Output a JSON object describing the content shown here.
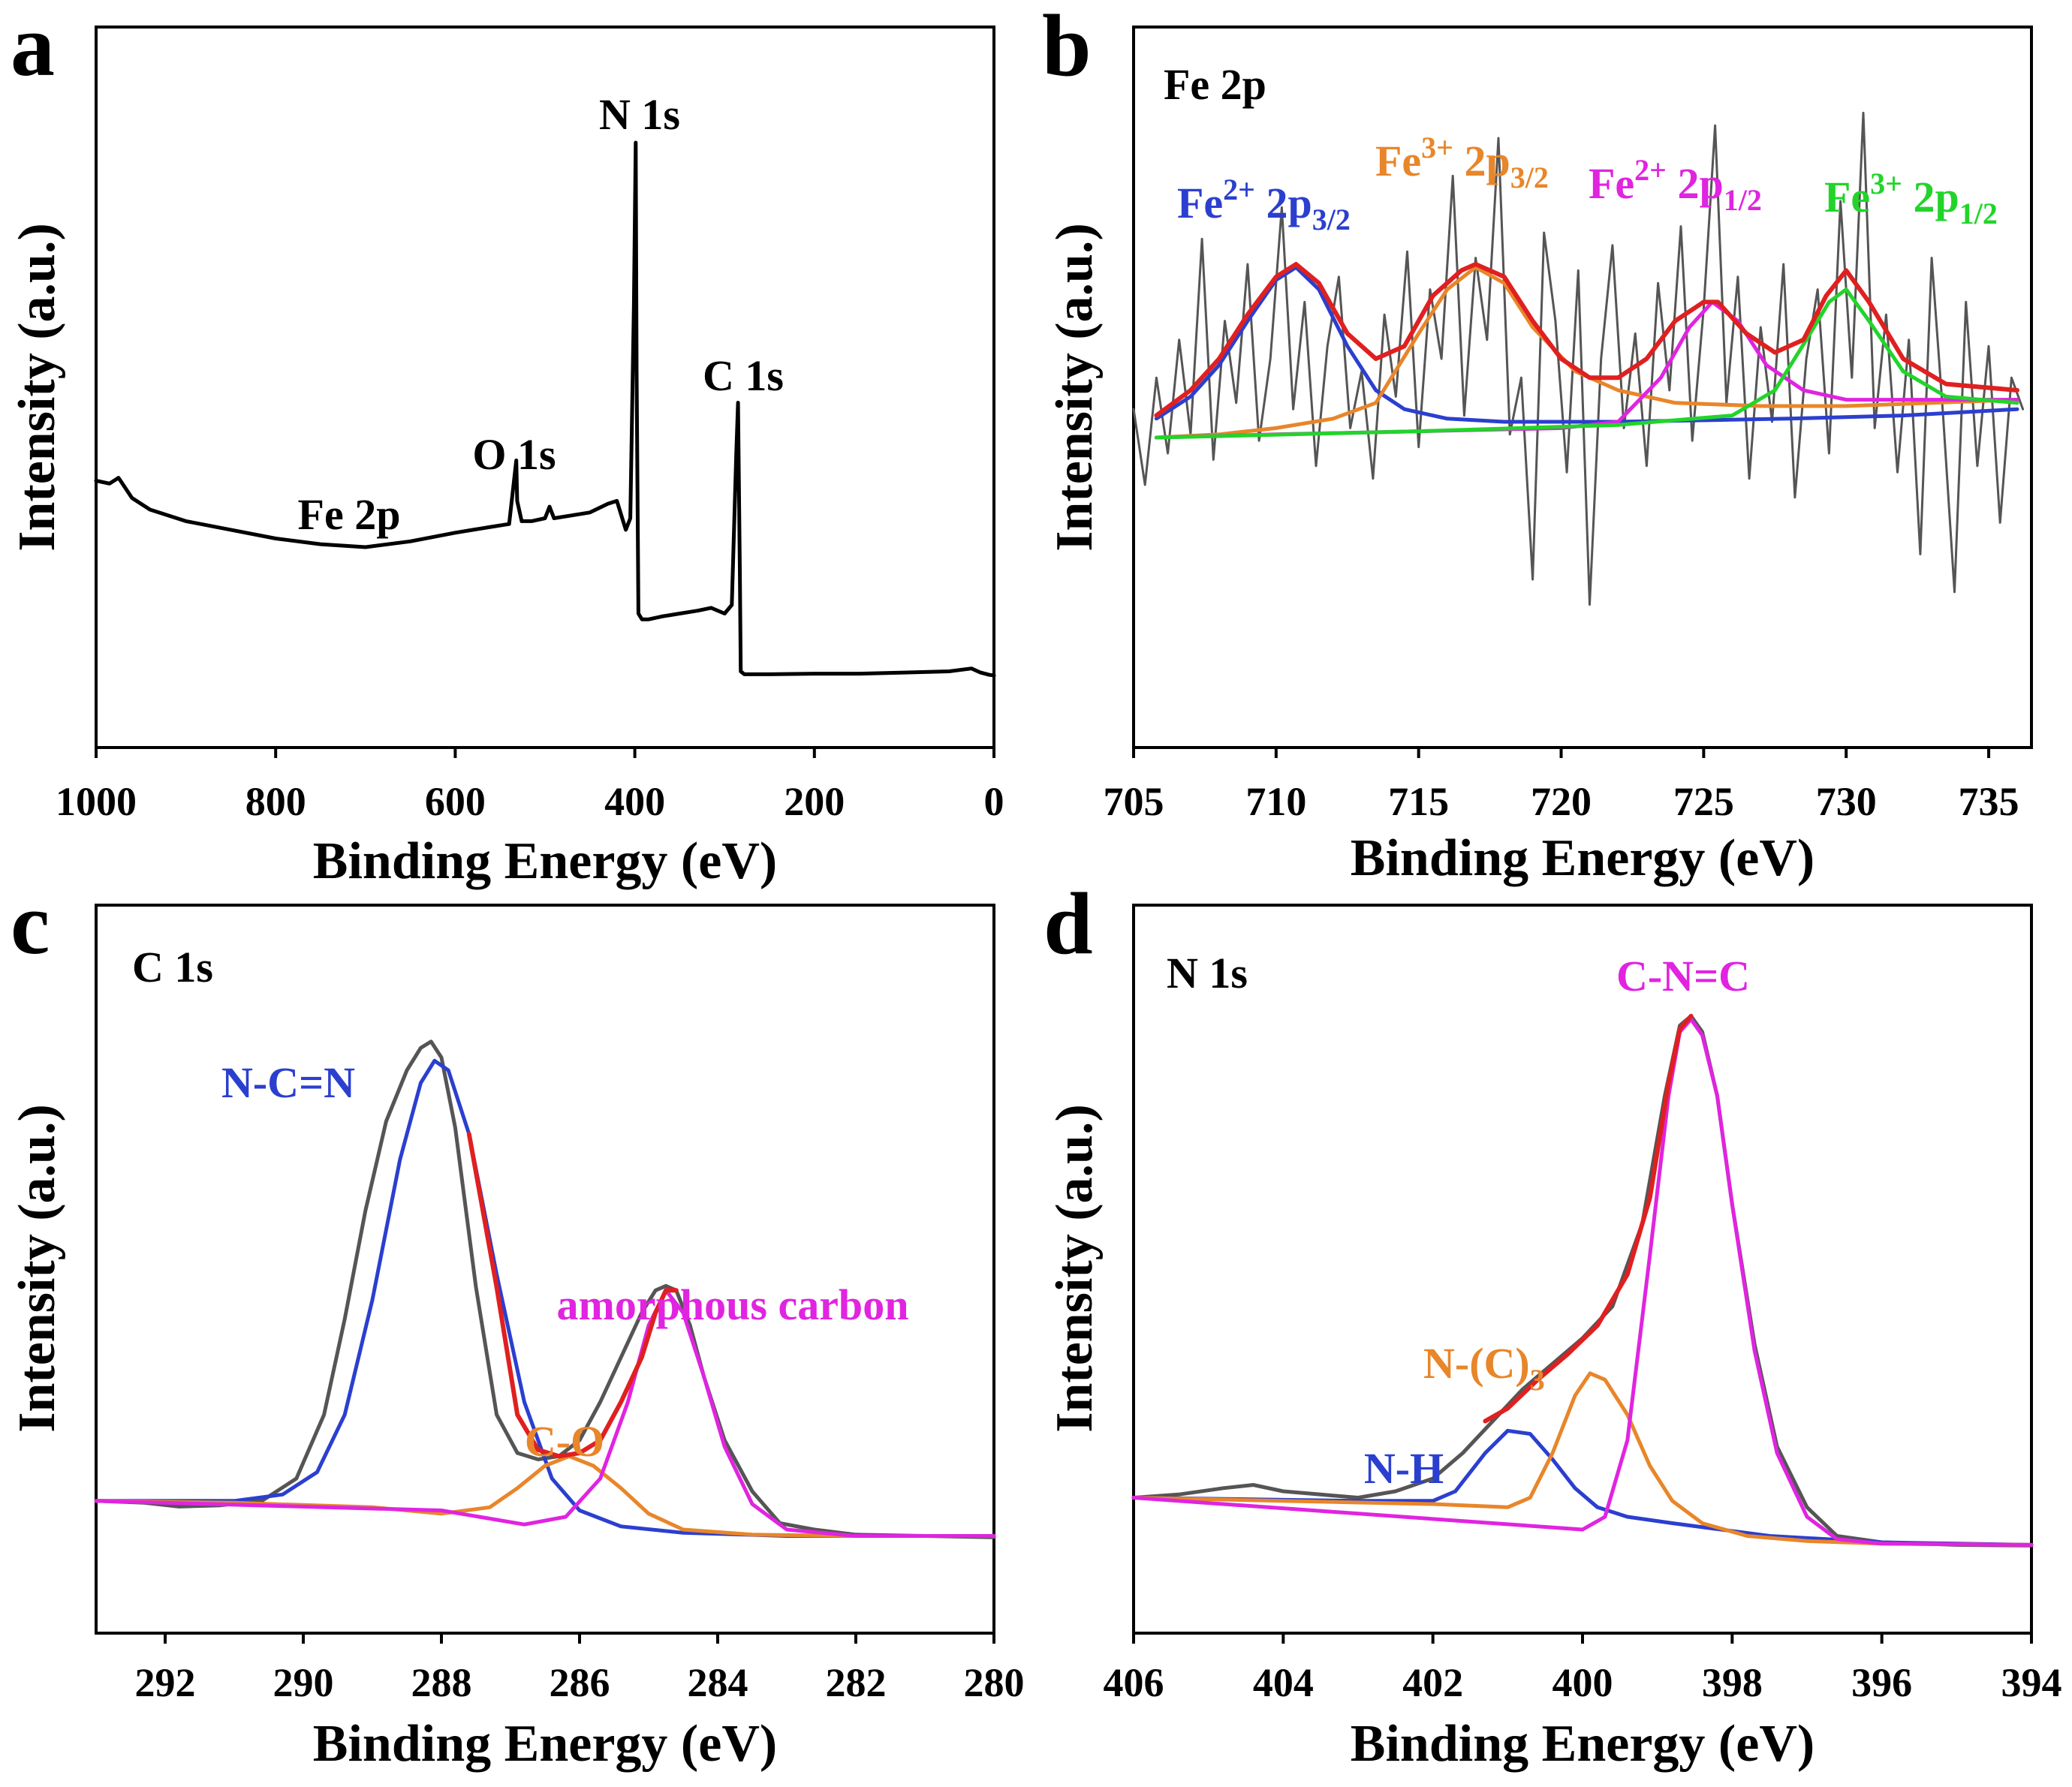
{
  "figure": {
    "panels": [
      "a",
      "b",
      "c",
      "d"
    ]
  },
  "chart_data": [
    {
      "panel": "a",
      "type": "line",
      "title": "",
      "xlabel": "Binding Energy (eV)",
      "ylabel": "Intensity (a.u.)",
      "xlim": [
        1000,
        0
      ],
      "ylim": [
        0,
        100
      ],
      "xticks": [
        "1000",
        "800",
        "600",
        "400",
        "200",
        "0"
      ],
      "annotations": [
        {
          "text": "N 1s",
          "color": "#000000"
        },
        {
          "text": "C 1s",
          "color": "#000000"
        },
        {
          "text": "O 1s",
          "color": "#000000"
        },
        {
          "text": "Fe 2p",
          "color": "#000000"
        }
      ],
      "series": [
        {
          "name": "survey",
          "color": "#000000",
          "x": [
            1000,
            985,
            975,
            960,
            940,
            900,
            850,
            800,
            750,
            700,
            650,
            600,
            560,
            540,
            532,
            531,
            526,
            515,
            500,
            495,
            490,
            470,
            450,
            430,
            420,
            410,
            405,
            401,
            399,
            398,
            396,
            392,
            385,
            370,
            350,
            330,
            315,
            300,
            292,
            287,
            285,
            283,
            282,
            278,
            250,
            200,
            150,
            100,
            50,
            25,
            15,
            5,
            0
          ],
          "y": [
            41.5,
            41.0,
            42.0,
            38.5,
            36.5,
            34.5,
            33.0,
            31.5,
            30.5,
            30.0,
            31.0,
            32.5,
            33.5,
            34.0,
            45.0,
            38.0,
            34.5,
            34.5,
            35.0,
            37.0,
            35.0,
            35.5,
            36.0,
            37.5,
            38.0,
            33.0,
            35.0,
            72.0,
            100.0,
            60.0,
            18.5,
            17.5,
            17.5,
            18.0,
            18.5,
            19.0,
            19.5,
            18.5,
            20.0,
            46.0,
            55.0,
            26.0,
            8.5,
            8.0,
            8.0,
            8.1,
            8.1,
            8.3,
            8.5,
            9.0,
            8.3,
            7.9,
            7.8
          ]
        }
      ]
    },
    {
      "panel": "b",
      "type": "line",
      "title": "Fe 2p",
      "xlabel": "Binding Energy (eV)",
      "ylabel": "Intensity (a.u.)",
      "xlim": [
        705,
        736.5
      ],
      "ylim": [
        0,
        100
      ],
      "xticks": [
        "705",
        "710",
        "715",
        "720",
        "725",
        "730",
        "735"
      ],
      "annotations": [
        {
          "text": "Fe",
          "sup": "2+",
          "mid": " 2p",
          "sub": "3/2",
          "color": "#2b3fcf"
        },
        {
          "text": "Fe",
          "sup": "3+",
          "mid": " 2p",
          "sub": "3/2",
          "color": "#e8862a"
        },
        {
          "text": "Fe",
          "sup": "2+",
          "mid": " 2p",
          "sub": "1/2",
          "color": "#e024e0"
        },
        {
          "text": "Fe",
          "sup": "3+",
          "mid": " 2p",
          "sub": "1/2",
          "color": "#22d42a"
        }
      ],
      "series": [
        {
          "name": "raw data",
          "color": "#555555",
          "x": [
            705.0,
            705.4,
            705.8,
            706.2,
            706.6,
            707.0,
            707.4,
            707.8,
            708.2,
            708.6,
            709.0,
            709.4,
            709.8,
            710.2,
            710.6,
            711.0,
            711.4,
            711.8,
            712.2,
            712.6,
            713.0,
            713.4,
            713.8,
            714.2,
            714.6,
            715.0,
            715.4,
            715.8,
            716.2,
            716.6,
            717.0,
            717.4,
            717.8,
            718.2,
            718.6,
            719.0,
            719.4,
            719.8,
            720.2,
            720.6,
            721.0,
            721.4,
            721.8,
            722.2,
            722.6,
            723.0,
            723.4,
            723.8,
            724.2,
            724.6,
            725.0,
            725.4,
            725.8,
            726.2,
            726.6,
            727.0,
            727.4,
            727.8,
            728.2,
            728.6,
            729.0,
            729.4,
            729.8,
            730.2,
            730.6,
            731.0,
            731.4,
            731.8,
            732.2,
            732.6,
            733.0,
            733.4,
            733.8,
            734.2,
            734.6,
            735.0,
            735.4,
            735.8,
            736.2
          ],
          "y": [
            47,
            35,
            52,
            40,
            58,
            43,
            74,
            39,
            61,
            48,
            70,
            42,
            55,
            79,
            47,
            64,
            38,
            57,
            68,
            44,
            53,
            36,
            62,
            49,
            72,
            41,
            66,
            55,
            84,
            46,
            71,
            58,
            90,
            43,
            52,
            20,
            75,
            61,
            37,
            69,
            16,
            55,
            73,
            44,
            59,
            38,
            67,
            50,
            76,
            42,
            63,
            92,
            48,
            68,
            36,
            60,
            45,
            70,
            33,
            55,
            66,
            40,
            80,
            52,
            94,
            44,
            62,
            37,
            58,
            24,
            71,
            46,
            18,
            64,
            38,
            57,
            29,
            52,
            47
          ]
        },
        {
          "name": "Fe2+ 2p3/2 fit",
          "color": "#2b3fcf",
          "x": [
            705.8,
            707,
            708,
            709,
            710,
            710.7,
            711.5,
            712.5,
            713.5,
            714.5,
            716,
            718,
            722,
            728,
            732,
            736
          ],
          "y": [
            45.5,
            49,
            54,
            61,
            67.5,
            69.5,
            66,
            57,
            50,
            47,
            45.5,
            45,
            45,
            45.5,
            46,
            47
          ]
        },
        {
          "name": "Fe3+ 2p3/2 fit",
          "color": "#e8862a",
          "x": [
            705.8,
            708,
            710,
            712,
            713.5,
            715,
            716,
            717,
            718,
            719,
            720.5,
            722,
            724,
            727,
            730,
            733,
            736
          ],
          "y": [
            42.5,
            43,
            44,
            45.5,
            48,
            59,
            66,
            69.5,
            67,
            60,
            53,
            50,
            48,
            47.5,
            47.5,
            48,
            48.5
          ]
        },
        {
          "name": "Fe2+ 2p1/2 fit",
          "color": "#e024e0",
          "x": [
            705.8,
            710,
            715,
            720,
            722,
            723.5,
            724.5,
            725.3,
            726.2,
            727.2,
            728.5,
            730,
            733,
            736
          ],
          "y": [
            42.5,
            43,
            43.5,
            44,
            45,
            52,
            60,
            64,
            61,
            54,
            50,
            48.5,
            48.5,
            48.5
          ]
        },
        {
          "name": "Fe3+ 2p1/2 fit",
          "color": "#22d42a",
          "x": [
            705.8,
            715,
            722,
            726,
            727.5,
            728.6,
            729.4,
            730.0,
            730.8,
            732,
            733.5,
            736
          ],
          "y": [
            42.5,
            43.5,
            44.5,
            46,
            50,
            58,
            64,
            66,
            61,
            53,
            49,
            48
          ]
        },
        {
          "name": "envelope",
          "color": "#e02020",
          "x": [
            705.8,
            707,
            708,
            709,
            710,
            710.7,
            711.5,
            712.5,
            713.5,
            714.5,
            715.5,
            716.5,
            717.0,
            718,
            719,
            720,
            721,
            722,
            723,
            724,
            725,
            725.5,
            726.5,
            727.5,
            728.5,
            729.3,
            730.0,
            730.8,
            732,
            733.5,
            736
          ],
          "y": [
            46,
            50,
            55,
            62,
            68,
            70,
            67,
            59,
            55,
            57,
            65,
            69,
            70,
            68,
            61,
            55,
            52,
            52,
            55,
            61,
            64,
            64,
            59,
            56,
            58,
            65,
            69,
            64,
            55,
            51,
            50
          ]
        }
      ]
    },
    {
      "panel": "c",
      "type": "line",
      "title": "C 1s",
      "xlabel": "Binding Energy (eV)",
      "ylabel": "Intensity (a.u.)",
      "xlim": [
        293,
        280
      ],
      "ylim": [
        0,
        100
      ],
      "xticks": [
        "292",
        "290",
        "288",
        "286",
        "284",
        "282",
        "280"
      ],
      "annotations": [
        {
          "text": "N-C=N",
          "color": "#2b3fcf"
        },
        {
          "text": "C-O",
          "color": "#e8862a"
        },
        {
          "text": "amorphous carbon",
          "color": "#e024e0"
        }
      ],
      "series": [
        {
          "name": "raw data",
          "color": "#555555",
          "x": [
            293,
            292.3,
            291.8,
            291.2,
            290.6,
            290.1,
            289.7,
            289.4,
            289.1,
            288.8,
            288.5,
            288.3,
            288.15,
            288.0,
            287.8,
            287.5,
            287.2,
            286.9,
            286.6,
            286.3,
            286.0,
            285.7,
            285.4,
            285.1,
            284.9,
            284.75,
            284.6,
            284.4,
            284.2,
            283.9,
            283.5,
            283.1,
            282.6,
            282,
            281,
            280
          ],
          "y": [
            16.5,
            16.2,
            15.6,
            15.8,
            16.5,
            20.0,
            30,
            45,
            62,
            76,
            84,
            87.5,
            88.5,
            86,
            75,
            50,
            30,
            24,
            23,
            23.5,
            26,
            32,
            39,
            46,
            49.5,
            50.2,
            49.5,
            44,
            36,
            26,
            18,
            13,
            12,
            11.2,
            11.0,
            10.8
          ]
        },
        {
          "name": "N-C=N fit",
          "color": "#2b3fcf",
          "x": [
            293,
            291,
            290.3,
            289.8,
            289.4,
            289.0,
            288.6,
            288.3,
            288.1,
            287.9,
            287.6,
            287.2,
            286.8,
            286.4,
            286.0,
            285.4,
            284.5,
            283,
            280
          ],
          "y": [
            16.5,
            16.5,
            17.5,
            21,
            30,
            48,
            70,
            82,
            85.5,
            84,
            74,
            52,
            32,
            20,
            15,
            12.5,
            11.5,
            11,
            11
          ]
        },
        {
          "name": "C-O fit",
          "color": "#e8862a",
          "x": [
            293,
            291,
            289,
            288,
            287.3,
            286.9,
            286.5,
            286.15,
            285.8,
            285.4,
            285.0,
            284.5,
            283.5,
            282,
            280
          ],
          "y": [
            16.5,
            16.2,
            15.5,
            14.5,
            15.5,
            18.5,
            22,
            23.5,
            22,
            18.5,
            14.5,
            12,
            11.2,
            11,
            11
          ]
        },
        {
          "name": "amorphous carbon fit",
          "color": "#e024e0",
          "x": [
            293,
            288,
            286.8,
            286.2,
            285.7,
            285.3,
            285.0,
            284.75,
            284.5,
            284.2,
            283.9,
            283.5,
            283.0,
            282,
            280
          ],
          "y": [
            16.5,
            15,
            12.8,
            14,
            20,
            32,
            44,
            49.5,
            46,
            36,
            25,
            16,
            12,
            11,
            11
          ]
        },
        {
          "name": "envelope",
          "color": "#e02020",
          "x": [
            287.6,
            287.2,
            286.9,
            286.6,
            286.3,
            286.0,
            285.7,
            285.4,
            285.1,
            284.9,
            284.75,
            284.6
          ],
          "y": [
            74,
            50,
            30,
            24.5,
            23.5,
            24,
            26,
            32,
            39,
            46,
            49.5,
            49.5
          ]
        }
      ]
    },
    {
      "panel": "d",
      "type": "line",
      "title": "N 1s",
      "xlabel": "Binding Energy (eV)",
      "ylabel": "Intensity (a.u.)",
      "xlim": [
        406,
        394
      ],
      "ylim": [
        0,
        100
      ],
      "xticks": [
        "406",
        "404",
        "402",
        "400",
        "398",
        "396",
        "394"
      ],
      "annotations": [
        {
          "text": "C-N=C",
          "color": "#e024e0"
        },
        {
          "text": "N-(C)",
          "sub": "3",
          "color": "#e8862a"
        },
        {
          "text": "N-H",
          "color": "#2b3fcf"
        }
      ],
      "series": [
        {
          "name": "raw data",
          "color": "#555555",
          "x": [
            406,
            405.4,
            404.8,
            404.4,
            404.0,
            403.5,
            403.0,
            402.5,
            402.0,
            401.6,
            401.2,
            400.8,
            400.4,
            400.0,
            399.6,
            399.2,
            398.9,
            398.7,
            398.55,
            398.4,
            398.2,
            398.0,
            397.7,
            397.4,
            397.0,
            396.6,
            396.0,
            395,
            394
          ],
          "y": [
            17,
            17.5,
            18.5,
            19,
            18,
            17.5,
            17,
            18,
            20,
            24,
            29,
            34,
            38,
            42,
            47,
            60,
            80,
            91,
            92.5,
            90,
            80,
            63,
            41,
            25,
            15.5,
            11,
            10,
            9.6,
            9.5
          ]
        },
        {
          "name": "N-H fit",
          "color": "#2b3fcf",
          "x": [
            406,
            403,
            402,
            401.7,
            401.3,
            401.0,
            400.7,
            400.4,
            400.1,
            399.8,
            399.4,
            398.8,
            397.5,
            396,
            394
          ],
          "y": [
            17,
            16.5,
            16.5,
            18,
            24,
            27.5,
            27,
            23,
            18.5,
            15.5,
            14,
            13,
            11,
            10,
            9.6
          ]
        },
        {
          "name": "N-(C)3 fit",
          "color": "#e8862a",
          "x": [
            406,
            402,
            401,
            400.7,
            400.4,
            400.1,
            399.9,
            399.7,
            399.4,
            399.1,
            398.8,
            398.4,
            397.8,
            397,
            396,
            394
          ],
          "y": [
            17,
            16,
            15.5,
            17,
            24,
            33,
            36.5,
            35.5,
            30,
            22,
            16.5,
            13,
            11,
            10.2,
            9.8,
            9.6
          ]
        },
        {
          "name": "C-N=C fit",
          "color": "#e024e0",
          "x": [
            406,
            400,
            399.7,
            399.4,
            399.1,
            398.85,
            398.7,
            398.55,
            398.4,
            398.2,
            398.0,
            397.7,
            397.4,
            397.0,
            396.6,
            396,
            394
          ],
          "y": [
            17,
            12,
            14,
            26,
            55,
            80,
            90,
            92,
            89.5,
            80,
            63,
            40,
            24,
            14,
            10.5,
            9.8,
            9.6
          ]
        },
        {
          "name": "envelope",
          "color": "#e02020",
          "x": [
            401.3,
            401.0,
            400.6,
            400.2,
            399.8,
            399.4,
            399.1,
            398.85,
            398.7,
            398.55
          ],
          "y": [
            29,
            31,
            35.5,
            39.5,
            44,
            52,
            64,
            82,
            90.5,
            92.5
          ]
        }
      ]
    }
  ]
}
